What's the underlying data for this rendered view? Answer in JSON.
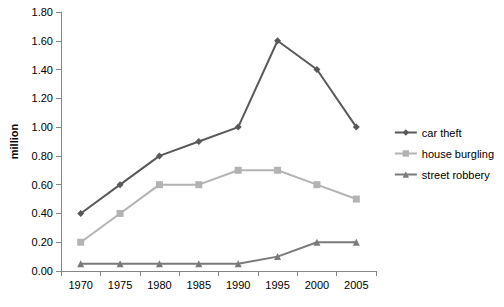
{
  "chart_data": {
    "type": "line",
    "y_label": "million",
    "categories": [
      "1970",
      "1975",
      "1980",
      "1985",
      "1990",
      "1995",
      "2000",
      "2005"
    ],
    "series": [
      {
        "name": "car theft",
        "color": "#595959",
        "marker": "diamond",
        "values": [
          0.4,
          0.6,
          0.8,
          0.9,
          1.0,
          1.6,
          1.4,
          1.0
        ]
      },
      {
        "name": "house burgling",
        "color": "#b3b3b3",
        "marker": "square",
        "values": [
          0.2,
          0.4,
          0.6,
          0.6,
          0.7,
          0.7,
          0.6,
          0.5
        ]
      },
      {
        "name": "street robbery",
        "color": "#7a7a7a",
        "marker": "triangle",
        "values": [
          0.05,
          0.05,
          0.05,
          0.05,
          0.05,
          0.1,
          0.2,
          0.2
        ]
      }
    ],
    "ylim": [
      0,
      1.8
    ],
    "yticks": [
      {
        "value": 0,
        "label": "0.00"
      },
      {
        "value": 0.2,
        "label": "0.20"
      },
      {
        "value": 0.4,
        "label": "0.40"
      },
      {
        "value": 0.6,
        "label": "0.60"
      },
      {
        "value": 0.8,
        "label": "0.80"
      },
      {
        "value": 1.0,
        "label": "1.00"
      },
      {
        "value": 1.2,
        "label": "1.20"
      },
      {
        "value": 1.4,
        "label": "1.40"
      },
      {
        "value": 1.6,
        "label": "1.60"
      },
      {
        "value": 1.8,
        "label": "1.80"
      }
    ],
    "grid": false,
    "legend": "right"
  }
}
